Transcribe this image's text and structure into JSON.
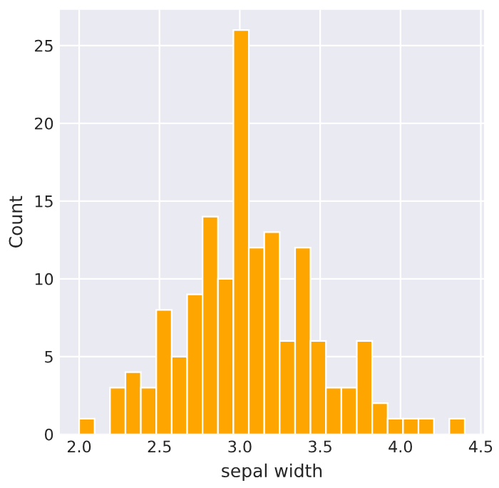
{
  "chart_data": {
    "type": "histogram",
    "xlabel": "sepal width",
    "ylabel": "Count",
    "bins": [
      2.0,
      2.096,
      2.192,
      2.288,
      2.384,
      2.48,
      2.576,
      2.672,
      2.768,
      2.864,
      2.96,
      3.056,
      3.152,
      3.248,
      3.344,
      3.44,
      3.536,
      3.632,
      3.728,
      3.824,
      3.92,
      4.016,
      4.112,
      4.208,
      4.304,
      4.4
    ],
    "values": [
      1,
      0,
      3,
      4,
      3,
      8,
      5,
      9,
      14,
      10,
      26,
      12,
      13,
      6,
      12,
      6,
      3,
      3,
      6,
      2,
      1,
      1,
      1,
      0,
      1
    ],
    "color": "#ffa500",
    "xlim": [
      1.88,
      4.52
    ],
    "ylim": [
      0,
      27.3
    ],
    "xticks": [
      {
        "value": 2,
        "label": "2.0"
      },
      2.5,
      {
        "value": 3,
        "label": "3.0"
      },
      3.5,
      {
        "value": 4,
        "label": "4.0"
      },
      4.5
    ],
    "yticks": [
      0,
      5,
      10,
      15,
      20,
      25
    ],
    "grid": true
  }
}
